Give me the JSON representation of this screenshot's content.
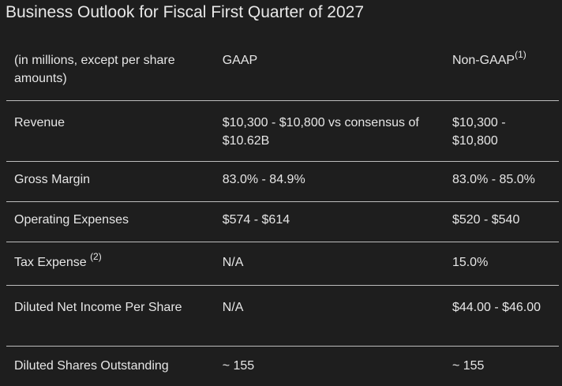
{
  "title": "Business Outlook for Fiscal First Quarter of 2027",
  "columns": {
    "label": "(in millions, except per share amounts)",
    "gaap": "GAAP",
    "nongaap": "Non-GAAP",
    "nongaap_note": "(1)"
  },
  "rows": [
    {
      "label": "Revenue",
      "note": "",
      "gaap": "$10,300 - $10,800 vs consensus of $10.62B",
      "nongaap": "$10,300 - $10,800"
    },
    {
      "label": "Gross Margin",
      "note": "",
      "gaap": "83.0% - 84.9%",
      "nongaap": "83.0% - 85.0%"
    },
    {
      "label": "Operating Expenses",
      "note": "",
      "gaap": "$574 - $614",
      "nongaap": "$520 - $540"
    },
    {
      "label": "Tax Expense",
      "note": "(2)",
      "gaap": "N/A",
      "nongaap": "15.0%"
    },
    {
      "label": "Diluted Net Income Per Share",
      "note": "",
      "gaap": "N/A",
      "nongaap": "$44.00 - $46.00"
    },
    {
      "label": "Diluted Shares Outstanding",
      "note": "",
      "gaap": "~ 155",
      "nongaap": "~ 155"
    }
  ]
}
